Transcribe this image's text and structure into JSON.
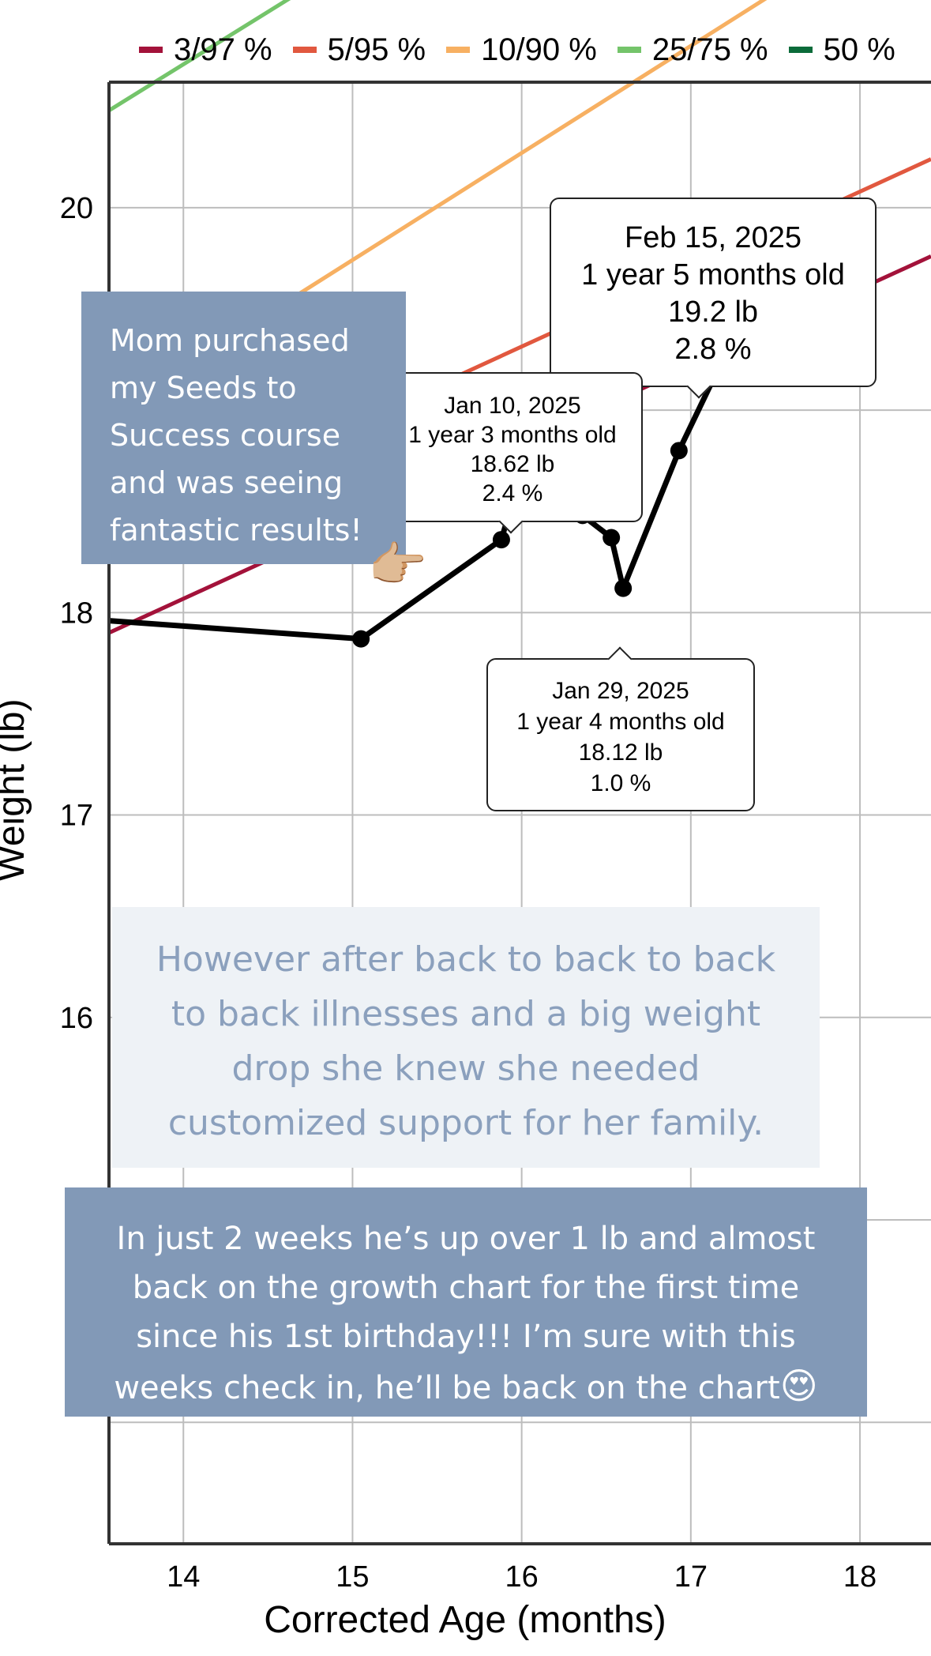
{
  "legend": [
    {
      "label": "3/97 %",
      "color": "#a3123a"
    },
    {
      "label": "5/95 %",
      "color": "#e1583f"
    },
    {
      "label": "10/90 %",
      "color": "#f7b062"
    },
    {
      "label": "25/75 %",
      "color": "#74c46a"
    },
    {
      "label": "50 %",
      "color": "#0b6b3a"
    }
  ],
  "chart_data": {
    "type": "line",
    "xlabel": "Corrected Age (months)",
    "ylabel": "Weight (lb)",
    "xlim": [
      13.56,
      18.42
    ],
    "ylim": [
      13.4,
      20.62
    ],
    "x_ticks": [
      "14",
      "15",
      "16",
      "17",
      "18"
    ],
    "y_ticks": [
      "16",
      "17",
      "18",
      "20"
    ],
    "grid": true,
    "percentile_lines": [
      {
        "name": "3/97 %",
        "color": "#a3123a",
        "points": [
          [
            13.56,
            17.9
          ],
          [
            18.42,
            19.76
          ]
        ]
      },
      {
        "name": "5/95 %",
        "color": "#e1583f",
        "points": [
          [
            13.56,
            18.38
          ],
          [
            18.42,
            20.24
          ]
        ]
      },
      {
        "name": "10/90 %",
        "color": "#f7b062",
        "points": [
          [
            13.56,
            18.98
          ],
          [
            18.42,
            21.55
          ]
        ]
      },
      {
        "name": "25/75 %",
        "color": "#74c46a",
        "points": [
          [
            13.56,
            20.48
          ],
          [
            18.42,
            23.0
          ]
        ]
      }
    ],
    "series": [
      {
        "color": "#000000",
        "x": [
          13.56,
          15.05,
          15.88,
          15.97,
          16.36,
          16.53,
          16.6,
          16.93,
          17.16
        ],
        "y": [
          17.96,
          17.87,
          18.36,
          18.62,
          18.48,
          18.37,
          18.12,
          18.8,
          19.2
        ],
        "markers_from_index": 1
      }
    ],
    "tooltips": [
      {
        "date": "Feb 15, 2025",
        "age": "1 year 5 months old",
        "weight": "19.2 lb",
        "percentile": "2.8 %"
      },
      {
        "date": "Jan 10, 2025",
        "age": "1 year 3 months old",
        "weight": "18.62 lb",
        "percentile": "2.4 %"
      },
      {
        "date": "Jan 29, 2025",
        "age": "1 year 4 months old",
        "weight": "18.12 lb",
        "percentile": "1.0 %"
      }
    ]
  },
  "overlays": {
    "top_note": "Mom purchased my Seeds to Success course and was seeing fantastic results!",
    "pointing_emoji": "👉🏼",
    "middle_note": "However after back to back to back to back illnesses and a big weight drop she knew she needed customized support for her family.",
    "bottom_note": "In just 2 weeks he’s up over 1 lb and almost back on the growth chart for the first time since his 1st birthday!!! I’m sure with this weeks check in, he’ll be back on the chart",
    "bottom_emoji": "😍"
  }
}
